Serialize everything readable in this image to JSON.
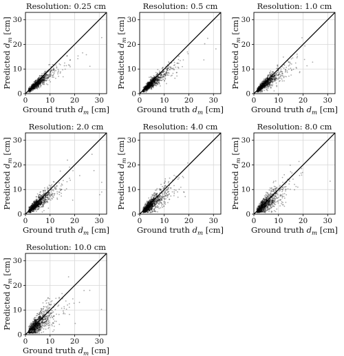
{
  "figure": {
    "xlabel_prefix": "Ground truth ",
    "ylabel_prefix": "Predicted ",
    "var_main": "d",
    "var_sub": "m",
    "unit_suffix": " [cm]"
  },
  "chart_data": [
    {
      "type": "scatter",
      "title": "Resolution: 0.25 cm",
      "resolution_cm": 0.25,
      "spread": 0.55,
      "xlim": [
        0,
        33
      ],
      "ylim": [
        0,
        33
      ],
      "xticks": [
        0,
        10,
        20,
        30
      ],
      "yticks": [
        0,
        10,
        20,
        30
      ],
      "grid": true,
      "reference_line": "y = x",
      "points": 900
    },
    {
      "type": "scatter",
      "title": "Resolution: 0.5 cm",
      "resolution_cm": 0.5,
      "spread": 0.6,
      "xlim": [
        0,
        33
      ],
      "ylim": [
        0,
        33
      ],
      "xticks": [
        0,
        10,
        20,
        30
      ],
      "yticks": [
        0,
        10,
        20,
        30
      ],
      "grid": true,
      "reference_line": "y = x",
      "points": 900
    },
    {
      "type": "scatter",
      "title": "Resolution: 1.0 cm",
      "resolution_cm": 1.0,
      "spread": 0.65,
      "xlim": [
        0,
        33
      ],
      "ylim": [
        0,
        33
      ],
      "xticks": [
        0,
        10,
        20,
        30
      ],
      "yticks": [
        0,
        10,
        20,
        30
      ],
      "grid": true,
      "reference_line": "y = x",
      "points": 900
    },
    {
      "type": "scatter",
      "title": "Resolution: 2.0 cm",
      "resolution_cm": 2.0,
      "spread": 0.75,
      "xlim": [
        0,
        33
      ],
      "ylim": [
        0,
        33
      ],
      "xticks": [
        0,
        10,
        20,
        30
      ],
      "yticks": [
        0,
        10,
        20,
        30
      ],
      "grid": true,
      "reference_line": "y = x",
      "points": 900
    },
    {
      "type": "scatter",
      "title": "Resolution: 4.0 cm",
      "resolution_cm": 4.0,
      "spread": 0.9,
      "xlim": [
        0,
        33
      ],
      "ylim": [
        0,
        33
      ],
      "xticks": [
        0,
        10,
        20,
        30
      ],
      "yticks": [
        0,
        10,
        20,
        30
      ],
      "grid": true,
      "reference_line": "y = x",
      "points": 900
    },
    {
      "type": "scatter",
      "title": "Resolution: 8.0 cm",
      "resolution_cm": 8.0,
      "spread": 1.05,
      "xlim": [
        0,
        33
      ],
      "ylim": [
        0,
        33
      ],
      "xticks": [
        0,
        10,
        20,
        30
      ],
      "yticks": [
        0,
        10,
        20,
        30
      ],
      "grid": true,
      "reference_line": "y = x",
      "points": 900
    },
    {
      "type": "scatter",
      "title": "Resolution: 10.0 cm",
      "resolution_cm": 10.0,
      "spread": 1.15,
      "xlim": [
        0,
        33
      ],
      "ylim": [
        0,
        33
      ],
      "xticks": [
        0,
        10,
        20,
        30
      ],
      "yticks": [
        0,
        10,
        20,
        30
      ],
      "grid": true,
      "reference_line": "y = x",
      "points": 900
    }
  ]
}
